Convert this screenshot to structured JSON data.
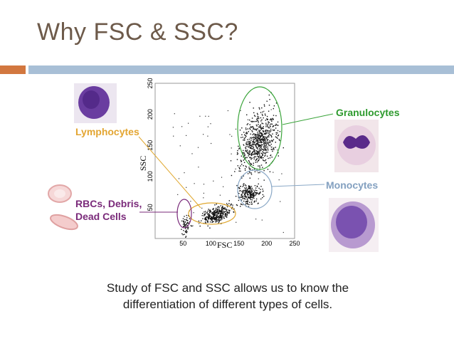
{
  "slide": {
    "title": "Why FSC & SSC?",
    "caption_line1": "Study of FSC and SSC allows us to know the",
    "caption_line2": "differentiation of different types of cells."
  },
  "labels": {
    "lymphocytes": "Lymphocytes",
    "rbc_line1": "RBCs, Debris,",
    "rbc_line2": "Dead Cells",
    "granulocytes": "Granulocytes",
    "monocytes": "Monocytes"
  },
  "colors": {
    "title": "#6d5a4a",
    "accent_orange": "#d2773f",
    "accent_blue": "#a8bfd6",
    "lymphocytes": "#e3a531",
    "rbc": "#7a2a7a",
    "granulocytes": "#2e9a2e",
    "monocytes": "#83a0c0"
  },
  "chart_data": {
    "type": "scatter",
    "xlabel": "FSC",
    "ylabel": "SSC",
    "xlim": [
      0,
      250
    ],
    "ylim": [
      0,
      250
    ],
    "xticks": [
      "50",
      "100",
      "150",
      "200",
      "250"
    ],
    "yticks": [
      "50",
      "100",
      "150",
      "200",
      "250"
    ],
    "populations": [
      {
        "name": "RBCs, Debris, Dead Cells",
        "center": [
          55,
          25
        ],
        "spread": [
          6,
          12
        ]
      },
      {
        "name": "Lymphocytes",
        "center": [
          110,
          40
        ],
        "spread": [
          18,
          9
        ]
      },
      {
        "name": "Monocytes",
        "center": [
          168,
          72
        ],
        "spread": [
          14,
          12
        ]
      },
      {
        "name": "Granulocytes",
        "center": [
          185,
          158
        ],
        "spread": [
          22,
          35
        ]
      }
    ]
  }
}
